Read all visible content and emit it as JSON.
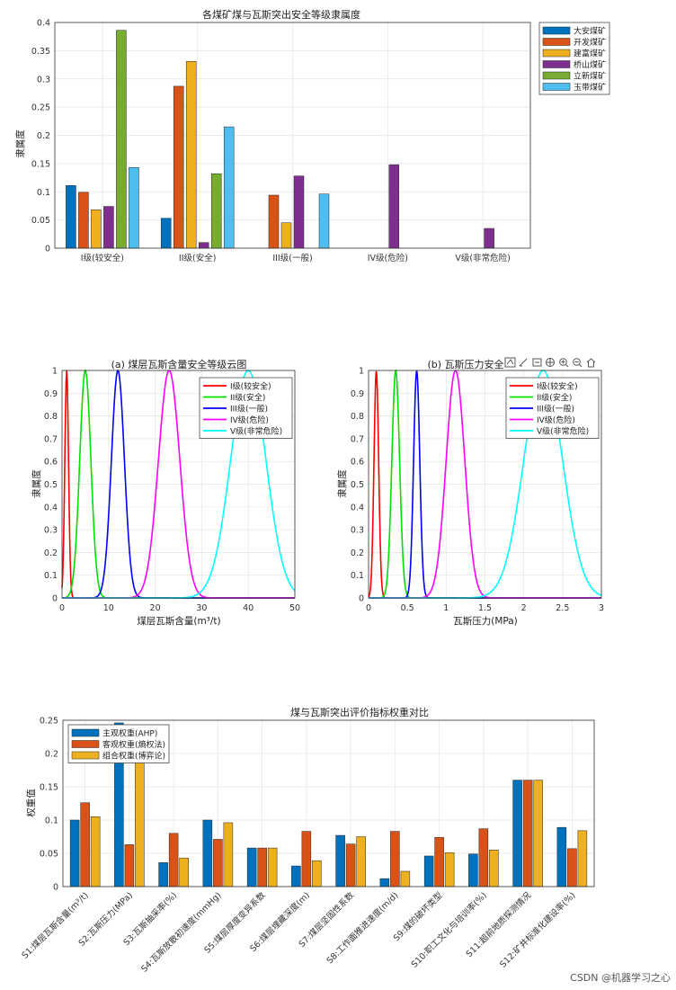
{
  "chart_data": [
    {
      "type": "bar",
      "title": "各煤矿煤与瓦斯突出安全等级隶属度",
      "ylabel": "隶属度",
      "xlabel": "",
      "ylim": [
        0,
        0.4
      ],
      "yticks": [
        "0",
        "0.05",
        "0.1",
        "0.15",
        "0.2",
        "0.25",
        "0.3",
        "0.35",
        "0.4"
      ],
      "categories": [
        "I级(较安全)",
        "II级(安全)",
        "III级(一般)",
        "IV级(危险)",
        "V级(非常危险)"
      ],
      "legend_position": "top-right-outside",
      "series": [
        {
          "name": "大安煤矿",
          "color": "#0072BD",
          "values": [
            0.111,
            0.053,
            0,
            0,
            0
          ]
        },
        {
          "name": "开发煤矿",
          "color": "#D95319",
          "values": [
            0.099,
            0.287,
            0.094,
            0,
            0
          ]
        },
        {
          "name": "建富煤矿",
          "color": "#EDB120",
          "values": [
            0.068,
            0.331,
            0.045,
            0,
            0
          ]
        },
        {
          "name": "桥山煤矿",
          "color": "#7E2F8E",
          "values": [
            0.074,
            0.01,
            0.128,
            0.148,
            0.035
          ]
        },
        {
          "name": "立新煤矿",
          "color": "#77AC30",
          "values": [
            0.386,
            0.132,
            0,
            0,
            0
          ]
        },
        {
          "name": "玉带煤矿",
          "color": "#4DBEEE",
          "values": [
            0.143,
            0.215,
            0.096,
            0,
            0
          ]
        }
      ]
    },
    {
      "type": "line",
      "title": "(a) 煤层瓦斯含量安全等级云图",
      "xlabel": "煤层瓦斯含量(m³/t)",
      "ylabel": "隶属度",
      "xlim": [
        0,
        50
      ],
      "ylim": [
        0,
        1
      ],
      "xticks": [
        "0",
        "10",
        "20",
        "30",
        "40",
        "50"
      ],
      "yticks": [
        "0",
        "0.1",
        "0.2",
        "0.3",
        "0.4",
        "0.5",
        "0.6",
        "0.7",
        "0.8",
        "0.9",
        "1"
      ],
      "legend_position": "top-right",
      "series": [
        {
          "name": "I级(较安全)",
          "color": "#ff0000",
          "center": 1,
          "spread": 0.4
        },
        {
          "name": "II级(安全)",
          "color": "#00e000",
          "center": 5,
          "spread": 1.2
        },
        {
          "name": "III级(一般)",
          "color": "#0000ff",
          "center": 12,
          "spread": 1.4
        },
        {
          "name": "IV级(危险)",
          "color": "#ff00ff",
          "center": 23,
          "spread": 2.3
        },
        {
          "name": "V级(非常危险)",
          "color": "#00ffff",
          "center": 40,
          "spread": 3.8
        }
      ]
    },
    {
      "type": "line",
      "title": "(b) 瓦斯压力安全",
      "xlabel": "瓦斯压力(MPa)",
      "ylabel": "隶属度",
      "xlim": [
        0,
        3
      ],
      "ylim": [
        0,
        1
      ],
      "xticks": [
        "0",
        "0.5",
        "1",
        "1.5",
        "2",
        "2.5",
        "3"
      ],
      "yticks": [
        "0",
        "0.1",
        "0.2",
        "0.3",
        "0.4",
        "0.5",
        "0.6",
        "0.7",
        "0.8",
        "0.9",
        "1"
      ],
      "legend_position": "top-right",
      "series": [
        {
          "name": "I级(较安全)",
          "color": "#ff0000",
          "center": 0.1,
          "spread": 0.03
        },
        {
          "name": "II级(安全)",
          "color": "#00e000",
          "center": 0.35,
          "spread": 0.05
        },
        {
          "name": "III级(一般)",
          "color": "#0000ff",
          "center": 0.62,
          "spread": 0.04
        },
        {
          "name": "IV级(危险)",
          "color": "#ff00ff",
          "center": 1.12,
          "spread": 0.12
        },
        {
          "name": "V级(非常危险)",
          "color": "#00ffff",
          "center": 2.25,
          "spread": 0.25
        }
      ]
    },
    {
      "type": "bar",
      "title": "煤与瓦斯突出评价指标权重对比",
      "ylabel": "权重值",
      "xlabel": "",
      "ylim": [
        0,
        0.25
      ],
      "yticks": [
        "0",
        "0.05",
        "0.1",
        "0.15",
        "0.2",
        "0.25"
      ],
      "categories": [
        "S1:煤层瓦斯含量(m³/t)",
        "S2:瓦斯压力(MPa)",
        "S3:瓦斯抽采率(%)",
        "S4:瓦斯放散初速度(mmHg)",
        "S5:煤层厚度变异系数",
        "S6:煤层埋藏深度(m)",
        "S7:煤层坚固性系数",
        "S8:工作面推进速度(m/d)",
        "S9:煤的破坏类型",
        "S10:职工文化与培训率(%)",
        "S11:超前地质探测情况",
        "S12:矿井标准化建设率(%)"
      ],
      "legend_position": "top-left",
      "series": [
        {
          "name": "主观权重(AHP)",
          "color": "#0072BD",
          "values": [
            0.1,
            0.246,
            0.036,
            0.1,
            0.058,
            0.031,
            0.077,
            0.012,
            0.046,
            0.049,
            0.16,
            0.089
          ]
        },
        {
          "name": "客观权重(熵权法)",
          "color": "#D95319",
          "values": [
            0.126,
            0.063,
            0.08,
            0.071,
            0.058,
            0.083,
            0.064,
            0.083,
            0.074,
            0.087,
            0.16,
            0.057
          ]
        },
        {
          "name": "组合权重(博弈论)",
          "color": "#EDB120",
          "values": [
            0.105,
            0.235,
            0.043,
            0.096,
            0.058,
            0.039,
            0.075,
            0.023,
            0.051,
            0.055,
            0.16,
            0.084
          ]
        }
      ]
    }
  ],
  "watermark": "CSDN @机器学习之心"
}
